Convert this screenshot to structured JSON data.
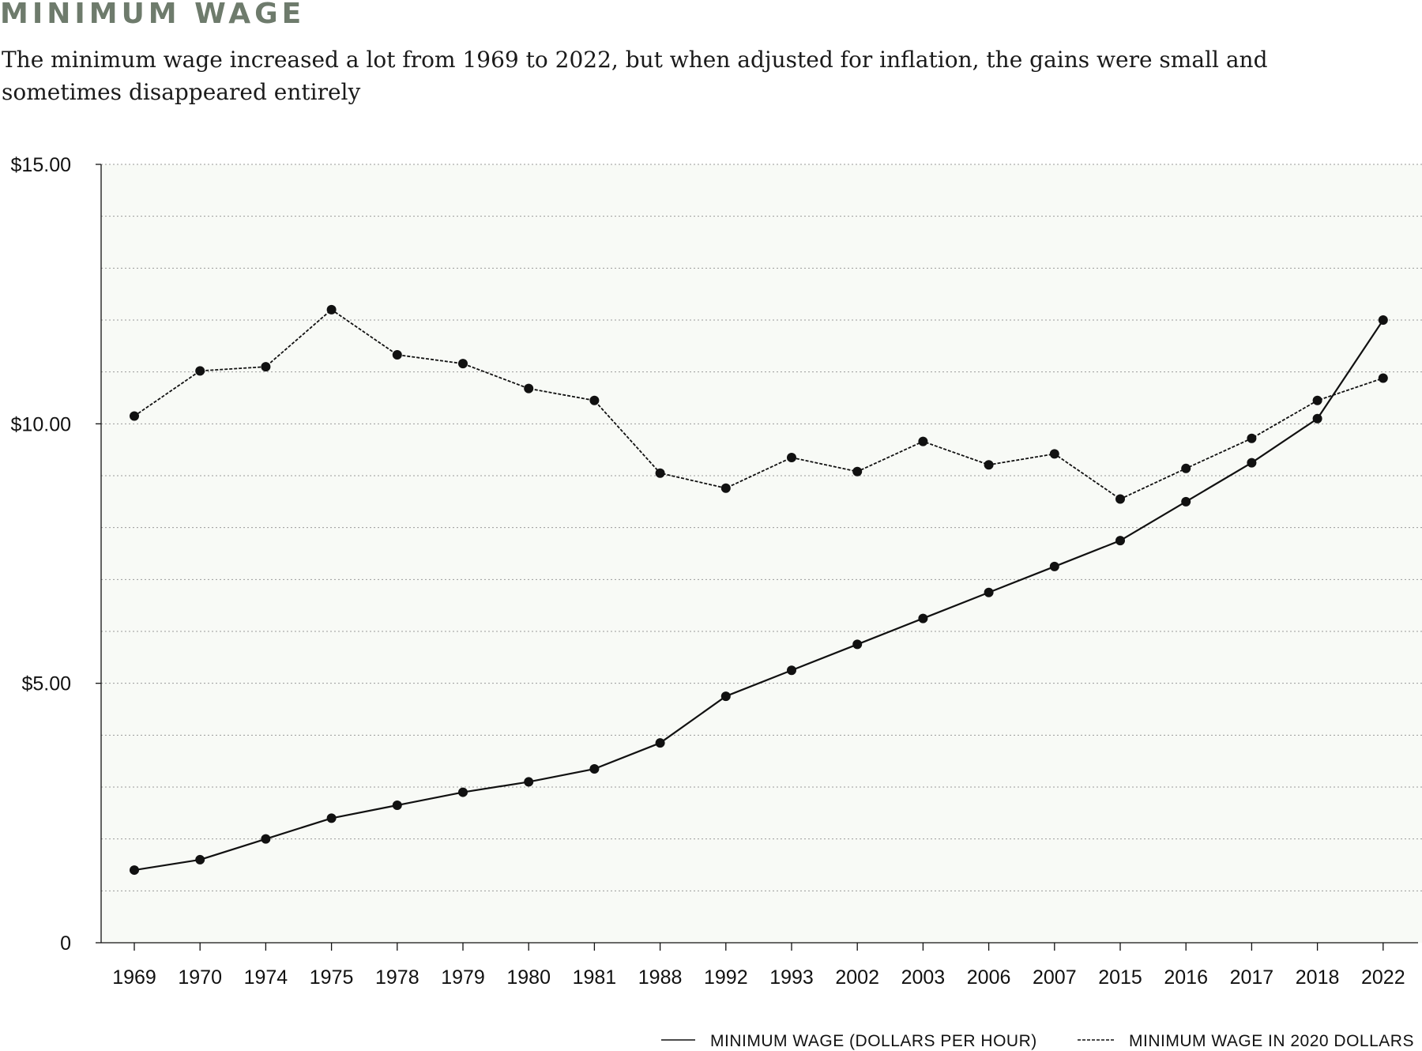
{
  "header": {
    "title": "MINIMUM WAGE",
    "subtitle": "The minimum wage increased a lot from 1969 to 2022, but when adjusted for inflation, the gains were small and sometimes disappeared entirely"
  },
  "colors": {
    "title": "#6e7b6c",
    "plot_background": "#f8faf6",
    "line": "#111111"
  },
  "chart_data": {
    "type": "line",
    "categories": [
      "1969",
      "1970",
      "1974",
      "1975",
      "1978",
      "1979",
      "1980",
      "1981",
      "1988",
      "1992",
      "1993",
      "2002",
      "2003",
      "2006",
      "2007",
      "2015",
      "2016",
      "2017",
      "2018",
      "2022"
    ],
    "series": [
      {
        "name": "MINIMUM WAGE (DOLLARS PER HOUR)",
        "style": "solid",
        "values": [
          1.4,
          1.6,
          2.0,
          2.4,
          2.65,
          2.9,
          3.1,
          3.35,
          3.85,
          4.75,
          5.25,
          5.75,
          6.25,
          6.75,
          7.25,
          7.75,
          8.5,
          9.25,
          10.1,
          12.0
        ]
      },
      {
        "name": "MINIMUM WAGE IN 2020 DOLLARS",
        "style": "dashed",
        "values": [
          10.15,
          11.02,
          11.1,
          12.2,
          11.33,
          11.16,
          10.68,
          10.45,
          9.05,
          8.76,
          9.35,
          9.08,
          9.66,
          9.21,
          9.42,
          8.55,
          9.14,
          9.72,
          10.45,
          10.88
        ]
      }
    ],
    "yticks": [
      {
        "value": 0,
        "label": "0"
      },
      {
        "value": 5,
        "label": "$5.00"
      },
      {
        "value": 10,
        "label": "$10.00"
      },
      {
        "value": 15,
        "label": "$15.00"
      }
    ],
    "ylim": [
      0,
      15
    ],
    "minor_gridline_count": 15,
    "grid": true,
    "legend_position": "bottom-right"
  }
}
